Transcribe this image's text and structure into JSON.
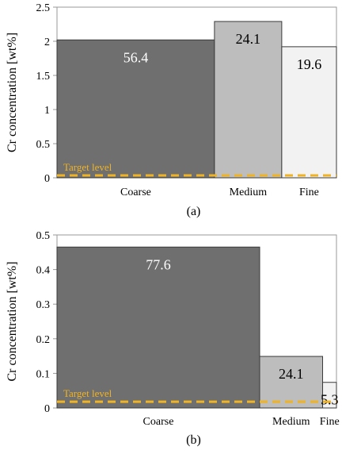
{
  "chart_data": [
    {
      "type": "bar",
      "panel_label": "(a)",
      "ylabel": "Cr concentration [wt%]",
      "ylim": [
        0,
        2.5
      ],
      "yticks": [
        0,
        0.5,
        1,
        1.5,
        2,
        2.5
      ],
      "ytick_labels": [
        "0",
        "0.5",
        "1",
        "1.5",
        "2",
        "2.5"
      ],
      "categories": [
        "Coarse",
        "Medium",
        "Fine"
      ],
      "bar_widths_fraction": [
        56.4,
        24.1,
        19.6
      ],
      "values": [
        2.02,
        2.29,
        1.92
      ],
      "bar_labels": [
        "56.4",
        "24.1",
        "19.6"
      ],
      "bar_colors": [
        "#6f6f6f",
        "#bdbdbd",
        "#f2f2f2"
      ],
      "target_level": 0.035,
      "target_label": "Target level",
      "target_color": "#f0b323",
      "grid": false,
      "legend": "none"
    },
    {
      "type": "bar",
      "panel_label": "(b)",
      "ylabel": "Cr concentration [wt%]",
      "ylim": [
        0,
        0.5
      ],
      "yticks": [
        0,
        0.1,
        0.2,
        0.3,
        0.4,
        0.5
      ],
      "ytick_labels": [
        "0",
        "0.1",
        "0.2",
        "0.3",
        "0.4",
        "0.5"
      ],
      "categories": [
        "Coarse",
        "Medium",
        "Fine"
      ],
      "bar_widths_fraction": [
        77.6,
        24.1,
        5.3
      ],
      "values": [
        0.465,
        0.149,
        0.074
      ],
      "bar_labels": [
        "77.6",
        "24.1",
        "5.3"
      ],
      "bar_colors": [
        "#6f6f6f",
        "#bdbdbd",
        "#f2f2f2"
      ],
      "target_level": 0.018,
      "target_label": "Target level",
      "target_color": "#f0b323",
      "grid": false,
      "legend": "none"
    }
  ]
}
